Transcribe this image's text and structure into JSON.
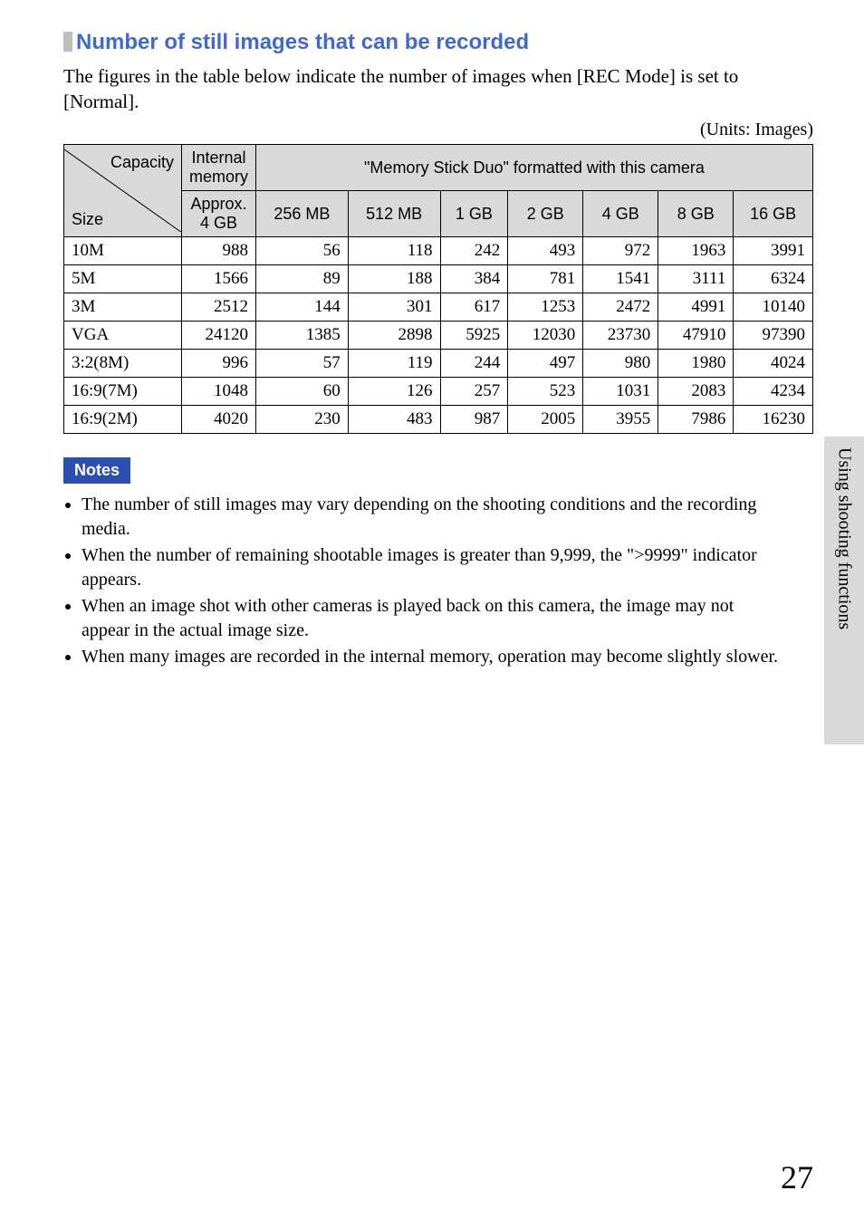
{
  "section": {
    "title": "Number of still images that can be recorded",
    "lead": "The figures in the table below indicate the number of images when [REC Mode] is set to [Normal].",
    "units": "(Units: Images)"
  },
  "table": {
    "corner_top": "Capacity",
    "corner_bottom": "Size",
    "header_internal_top": "Internal memory",
    "header_internal_bottom": "Approx. 4 GB",
    "header_memory_stick": "\"Memory Stick Duo\" formatted with this camera",
    "columns": [
      "256 MB",
      "512 MB",
      "1 GB",
      "2 GB",
      "4 GB",
      "8 GB",
      "16 GB"
    ],
    "rows": [
      {
        "label": "10M",
        "internal": "988",
        "values": [
          "56",
          "118",
          "242",
          "493",
          "972",
          "1963",
          "3991"
        ]
      },
      {
        "label": "5M",
        "internal": "1566",
        "values": [
          "89",
          "188",
          "384",
          "781",
          "1541",
          "3111",
          "6324"
        ]
      },
      {
        "label": "3M",
        "internal": "2512",
        "values": [
          "144",
          "301",
          "617",
          "1253",
          "2472",
          "4991",
          "10140"
        ]
      },
      {
        "label": "VGA",
        "internal": "24120",
        "values": [
          "1385",
          "2898",
          "5925",
          "12030",
          "23730",
          "47910",
          "97390"
        ]
      },
      {
        "label": "3:2(8M)",
        "internal": "996",
        "values": [
          "57",
          "119",
          "244",
          "497",
          "980",
          "1980",
          "4024"
        ]
      },
      {
        "label": "16:9(7M)",
        "internal": "1048",
        "values": [
          "60",
          "126",
          "257",
          "523",
          "1031",
          "2083",
          "4234"
        ]
      },
      {
        "label": "16:9(2M)",
        "internal": "4020",
        "values": [
          "230",
          "483",
          "987",
          "2005",
          "3955",
          "7986",
          "16230"
        ]
      }
    ],
    "header_bg": "#d9d9d9",
    "border_color": "#000000"
  },
  "notes": {
    "badge": "Notes",
    "badge_bg": "#2a4fb0",
    "items": [
      "The number of still images may vary depending on the shooting conditions and the recording media.",
      "When the number of remaining shootable images is greater than 9,999, the \">9999\" indicator appears.",
      "When an image shot with other cameras is played back on this camera, the image may not appear in the actual image size.",
      "When many images are recorded in the internal memory, operation may become slightly slower."
    ]
  },
  "side_tab": {
    "label": "Using shooting functions",
    "bg": "#d9d9d9"
  },
  "page_number": "27",
  "colors": {
    "title_color": "#4169cc",
    "marker_color": "#bdbdbd",
    "background": "#ffffff"
  }
}
